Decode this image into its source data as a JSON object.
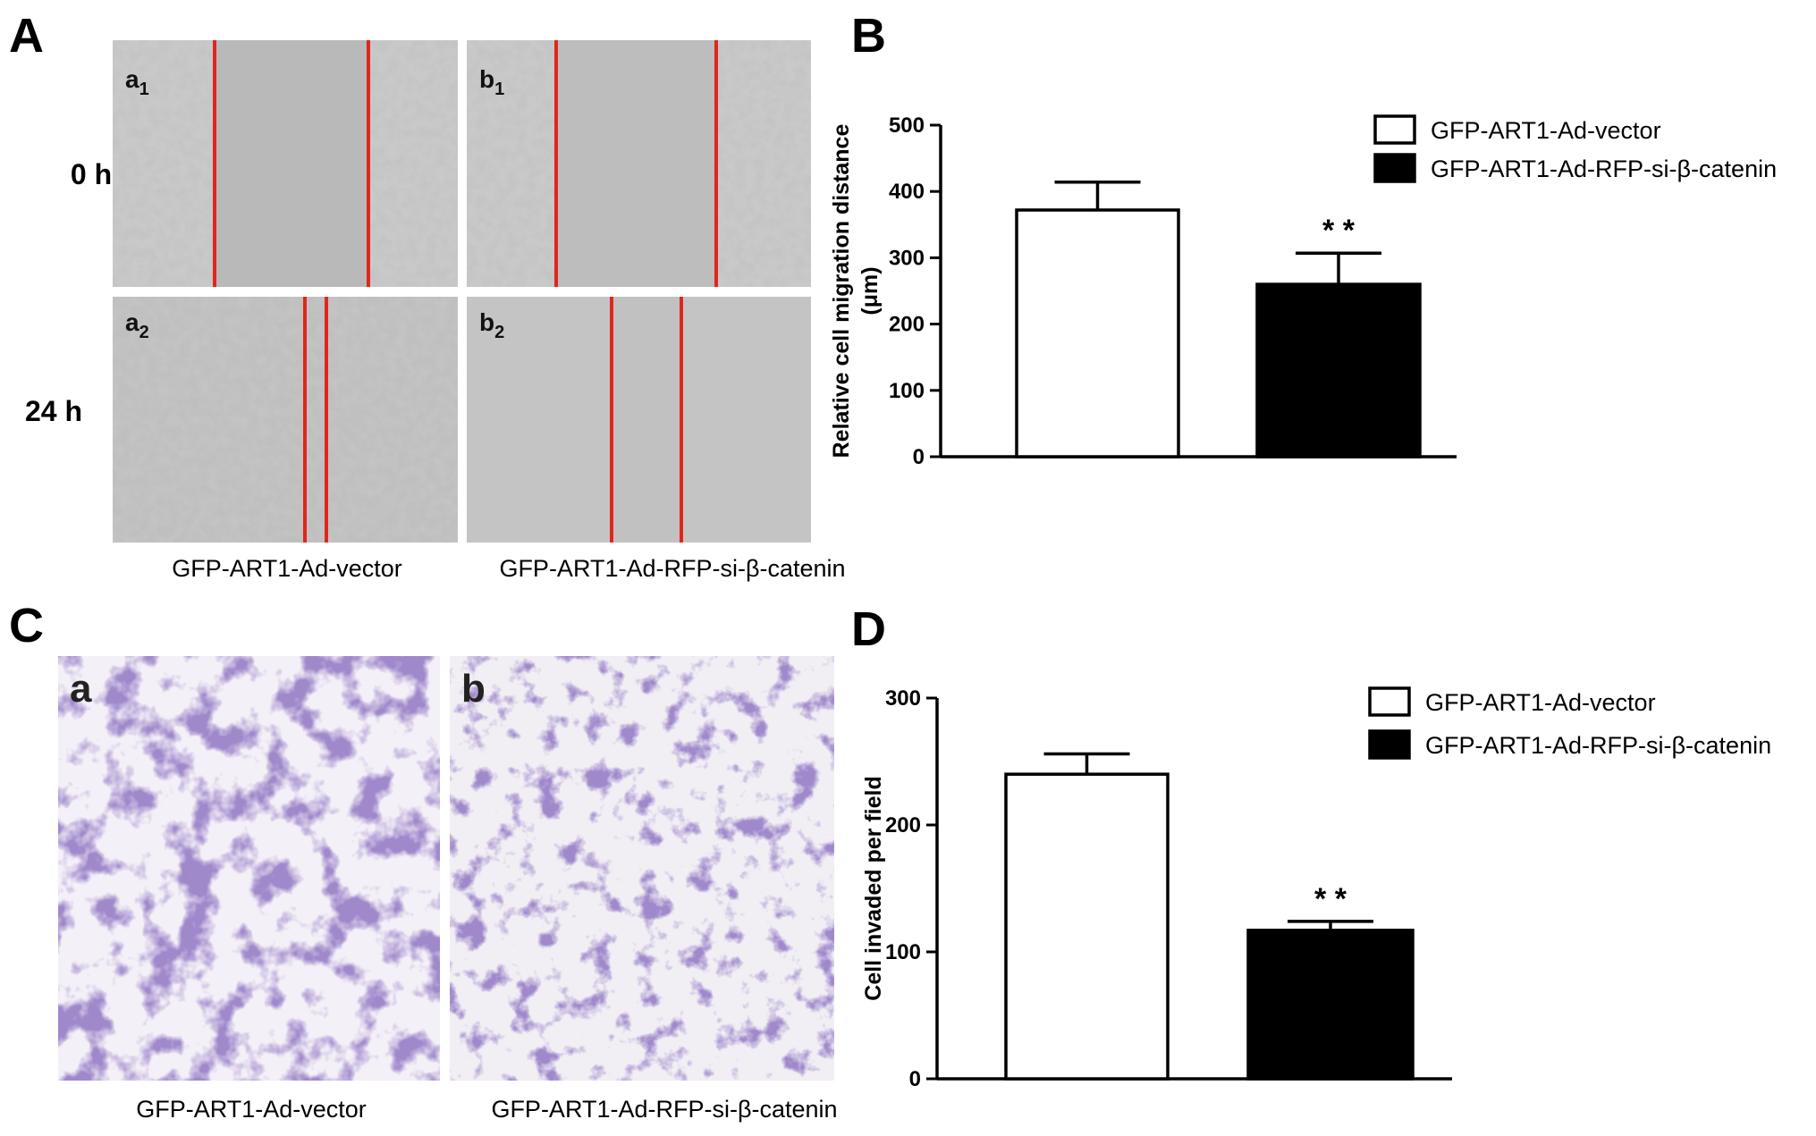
{
  "panel_labels": [
    "A",
    "B",
    "C",
    "D"
  ],
  "panel_a": {
    "row_labels": [
      "0 h",
      "24 h"
    ],
    "image_labels": [
      [
        "a",
        "1"
      ],
      [
        "b",
        "1"
      ],
      [
        "a",
        "2"
      ],
      [
        "b",
        "2"
      ]
    ],
    "captions": [
      "GFP-ART1-Ad-vector",
      "GFP-ART1-Ad-RFP-si-β-catenin"
    ]
  },
  "panel_c": {
    "image_labels": [
      "a",
      "b"
    ],
    "captions": [
      "GFP-ART1-Ad-vector",
      "GFP-ART1-Ad-RFP-si-β-catenin"
    ]
  },
  "chart_data": [
    {
      "type": "bar",
      "ylabel": [
        "Relative cell migration distance",
        "(μm)"
      ],
      "ylim": [
        0,
        500
      ],
      "yticks": [
        0,
        100,
        200,
        300,
        400,
        500
      ],
      "series": [
        {
          "name": "GFP-ART1-Ad-vector",
          "color": "#ffffff",
          "values": [
            372
          ],
          "errors": [
            42
          ]
        },
        {
          "name": "GFP-ART1-Ad-RFP-si-β-catenin",
          "color": "#000000",
          "values": [
            260
          ],
          "errors": [
            47
          ]
        }
      ],
      "annotation": "* *"
    },
    {
      "type": "bar",
      "ylabel": [
        "Cell invaded per field"
      ],
      "ylim": [
        0,
        300
      ],
      "yticks": [
        0,
        100,
        200,
        300
      ],
      "series": [
        {
          "name": "GFP-ART1-Ad-vector",
          "color": "#ffffff",
          "values": [
            240
          ],
          "errors": [
            16
          ]
        },
        {
          "name": "GFP-ART1-Ad-RFP-si-β-catenin",
          "color": "#000000",
          "values": [
            117
          ],
          "errors": [
            7
          ]
        }
      ],
      "annotation": "* *"
    }
  ]
}
